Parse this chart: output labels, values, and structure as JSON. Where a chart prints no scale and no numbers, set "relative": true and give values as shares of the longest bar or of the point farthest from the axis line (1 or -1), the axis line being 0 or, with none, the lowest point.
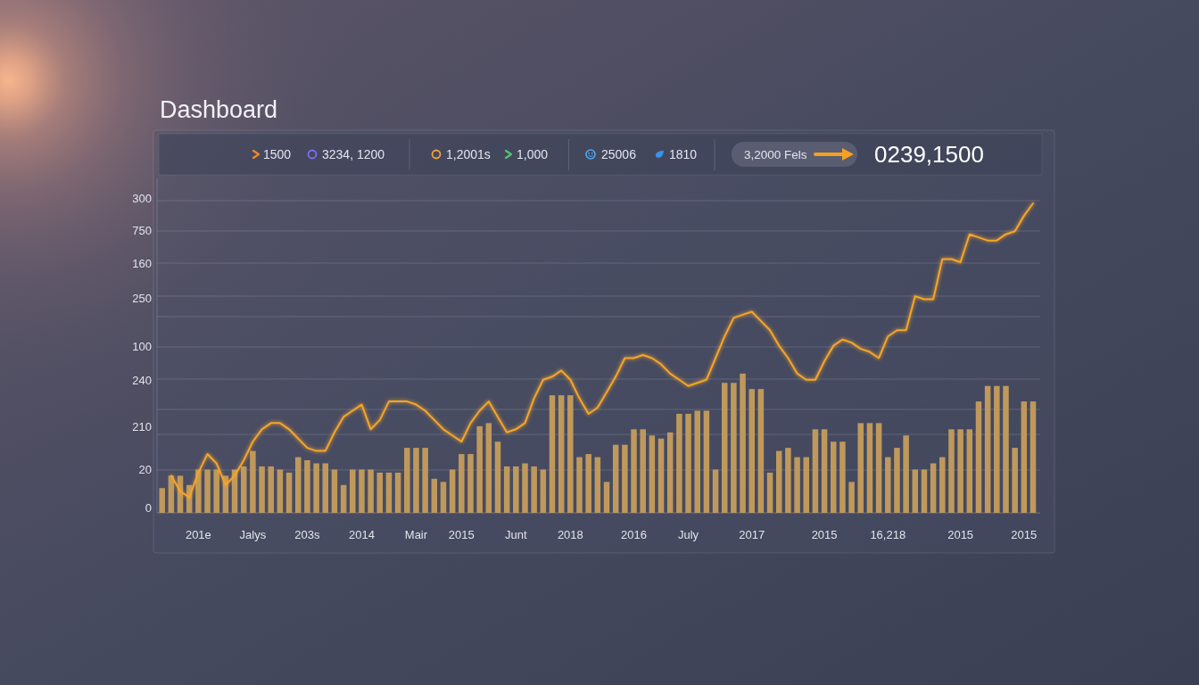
{
  "chart_data": {
    "type": "bar",
    "title": "Dashboard",
    "relative": true,
    "grid": "y",
    "annotations": [
      "1500",
      "3234, 1200",
      "1,2001s",
      "1,000",
      "25006",
      "1810",
      "3,2000 Fels",
      "0239,1500",
      "300",
      "750",
      "160",
      "250",
      "100",
      "240",
      "210",
      "20",
      "0"
    ],
    "categories": [
      null,
      null,
      null,
      null,
      "201e",
      null,
      null,
      null,
      null,
      null,
      "Jalys",
      null,
      null,
      null,
      null,
      null,
      "203s",
      null,
      null,
      null,
      null,
      null,
      "2014",
      null,
      null,
      null,
      null,
      null,
      "Mair",
      null,
      null,
      null,
      null,
      "2015",
      null,
      null,
      null,
      null,
      null,
      "Junt",
      null,
      null,
      null,
      null,
      null,
      "2018",
      null,
      null,
      null,
      null,
      null,
      null,
      "2016",
      null,
      null,
      null,
      null,
      null,
      "July",
      null,
      null,
      null,
      null,
      null,
      null,
      "2017",
      null,
      null,
      null,
      null,
      null,
      null,
      null,
      "2015",
      null,
      null,
      null,
      null,
      null,
      null,
      "16,218",
      null,
      null,
      null,
      null,
      null,
      null,
      null,
      "2015",
      null,
      null,
      null,
      null,
      null,
      null,
      "2015",
      null
    ],
    "series": [
      {
        "color": "#bf995c",
        "values": [
          0.08,
          0.12,
          0.12,
          0.09,
          0.14,
          0.14,
          0.14,
          0.12,
          0.14,
          0.15,
          0.2,
          0.15,
          0.15,
          0.14,
          0.13,
          0.18,
          0.17,
          0.16,
          0.16,
          0.14,
          0.09,
          0.14,
          0.14,
          0.14,
          0.13,
          0.13,
          0.13,
          0.21,
          0.21,
          0.21,
          0.11,
          0.1,
          0.14,
          0.19,
          0.19,
          0.28,
          0.29,
          0.23,
          0.15,
          0.15,
          0.16,
          0.15,
          0.14,
          0.38,
          0.38,
          0.38,
          0.18,
          0.19,
          0.18,
          0.1,
          0.22,
          0.22,
          0.27,
          0.27,
          0.25,
          0.24,
          0.26,
          0.32,
          0.32,
          0.33,
          0.33,
          0.14,
          0.42,
          0.42,
          0.45,
          0.4,
          0.4,
          0.13,
          0.2,
          0.21,
          0.18,
          0.18,
          0.27,
          0.27,
          0.23,
          0.23,
          0.1,
          0.29,
          0.29,
          0.29,
          0.18,
          0.21,
          0.25,
          0.14,
          0.14,
          0.16,
          0.18,
          0.27,
          0.27,
          0.27,
          0.36,
          0.41,
          0.41,
          0.41,
          0.21,
          0.36,
          0.36
        ]
      },
      {
        "type": "line",
        "color": "#f5a52a",
        "values": [
          null,
          0.12,
          0.07,
          0.05,
          0.13,
          0.19,
          0.16,
          0.09,
          0.12,
          0.17,
          0.23,
          0.27,
          0.29,
          0.29,
          0.27,
          0.24,
          0.21,
          0.2,
          0.2,
          0.26,
          0.31,
          0.33,
          0.35,
          0.27,
          0.3,
          0.36,
          0.36,
          0.36,
          0.35,
          0.33,
          0.3,
          0.27,
          0.25,
          0.23,
          0.29,
          0.33,
          0.36,
          0.31,
          0.26,
          0.27,
          0.29,
          0.37,
          0.43,
          0.44,
          0.46,
          0.43,
          0.37,
          0.32,
          0.34,
          0.39,
          0.44,
          0.5,
          0.5,
          0.51,
          0.5,
          0.48,
          0.45,
          0.43,
          0.41,
          0.42,
          0.43,
          0.5,
          0.57,
          0.63,
          0.64,
          0.65,
          0.62,
          0.59,
          0.54,
          0.5,
          0.45,
          0.43,
          0.43,
          0.49,
          0.54,
          0.56,
          0.55,
          0.53,
          0.52,
          0.5,
          0.57,
          0.59,
          0.59,
          0.7,
          0.69,
          0.69,
          0.82,
          0.82,
          0.81,
          0.9,
          0.89,
          0.88,
          0.88,
          0.9,
          0.91,
          0.96,
          1
        ]
      }
    ]
  }
}
